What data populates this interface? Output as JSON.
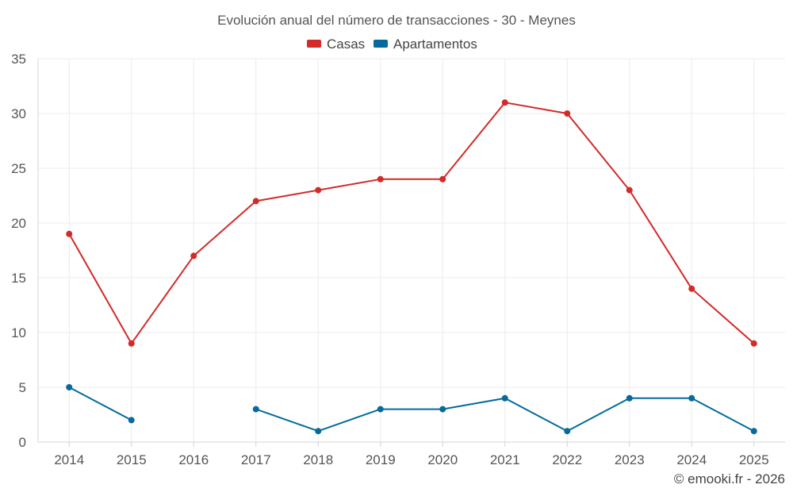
{
  "chart_data": {
    "type": "line",
    "title": "Evolución anual del número de transacciones - 30 - Meynes",
    "xlabel": "",
    "ylabel": "",
    "categories": [
      "2014",
      "2015",
      "2016",
      "2017",
      "2018",
      "2019",
      "2020",
      "2021",
      "2022",
      "2023",
      "2024",
      "2025"
    ],
    "ylim": [
      0,
      35
    ],
    "yticks": [
      0,
      5,
      10,
      15,
      20,
      25,
      30,
      35
    ],
    "grid": true,
    "legend_position": "top-center",
    "series": [
      {
        "name": "Casas",
        "color": "#d32a2a",
        "values": [
          19,
          9,
          17,
          22,
          23,
          24,
          24,
          31,
          30,
          23,
          14,
          9
        ]
      },
      {
        "name": "Apartamentos",
        "color": "#056a9c",
        "values": [
          5,
          2,
          null,
          3,
          1,
          3,
          3,
          4,
          1,
          4,
          4,
          1
        ]
      }
    ]
  },
  "credit": "© emooki.fr - 2026"
}
